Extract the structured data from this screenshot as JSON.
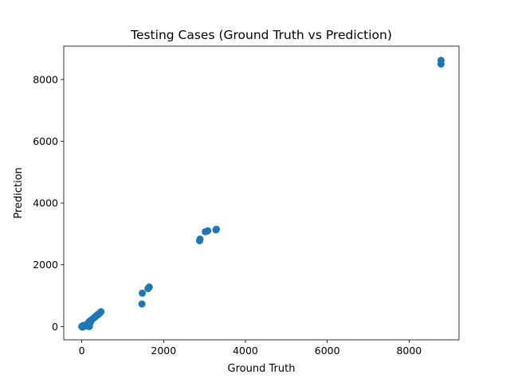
{
  "chart_data": {
    "type": "scatter",
    "title": "Testing Cases (Ground Truth vs Prediction)",
    "xlabel": "Ground Truth",
    "ylabel": "Prediction",
    "xlim": [
      -440,
      9220
    ],
    "ylim": [
      -430,
      9080
    ],
    "xticks": [
      {
        "value": 0,
        "label": "0"
      },
      {
        "value": 2000,
        "label": "2000"
      },
      {
        "value": 4000,
        "label": "4000"
      },
      {
        "value": 6000,
        "label": "6000"
      },
      {
        "value": 8000,
        "label": "8000"
      }
    ],
    "yticks": [
      {
        "value": 0,
        "label": "0"
      },
      {
        "value": 2000,
        "label": "2000"
      },
      {
        "value": 4000,
        "label": "4000"
      },
      {
        "value": 6000,
        "label": "6000"
      },
      {
        "value": 8000,
        "label": "8000"
      }
    ],
    "grid": false,
    "marker_color": "#1f77b4",
    "points": [
      {
        "x": 0,
        "y": 0
      },
      {
        "x": 10,
        "y": 10
      },
      {
        "x": 20,
        "y": -20
      },
      {
        "x": 30,
        "y": 30
      },
      {
        "x": 50,
        "y": 10
      },
      {
        "x": 60,
        "y": 40
      },
      {
        "x": 90,
        "y": 20
      },
      {
        "x": 110,
        "y": 60
      },
      {
        "x": 150,
        "y": 100
      },
      {
        "x": 170,
        "y": 140
      },
      {
        "x": 180,
        "y": 0
      },
      {
        "x": 190,
        "y": 10
      },
      {
        "x": 200,
        "y": 180
      },
      {
        "x": 220,
        "y": 150
      },
      {
        "x": 240,
        "y": 220
      },
      {
        "x": 260,
        "y": 240
      },
      {
        "x": 300,
        "y": 280
      },
      {
        "x": 330,
        "y": 320
      },
      {
        "x": 360,
        "y": 350
      },
      {
        "x": 380,
        "y": 370
      },
      {
        "x": 400,
        "y": 400
      },
      {
        "x": 420,
        "y": 410
      },
      {
        "x": 450,
        "y": 450
      },
      {
        "x": 470,
        "y": 480
      },
      {
        "x": 1470,
        "y": 730
      },
      {
        "x": 1480,
        "y": 1080
      },
      {
        "x": 1620,
        "y": 1230
      },
      {
        "x": 1650,
        "y": 1280
      },
      {
        "x": 2880,
        "y": 2780
      },
      {
        "x": 2890,
        "y": 2830
      },
      {
        "x": 3020,
        "y": 3070
      },
      {
        "x": 3080,
        "y": 3100
      },
      {
        "x": 3280,
        "y": 3130
      },
      {
        "x": 3290,
        "y": 3150
      },
      {
        "x": 8780,
        "y": 8500
      },
      {
        "x": 8780,
        "y": 8620
      }
    ]
  }
}
